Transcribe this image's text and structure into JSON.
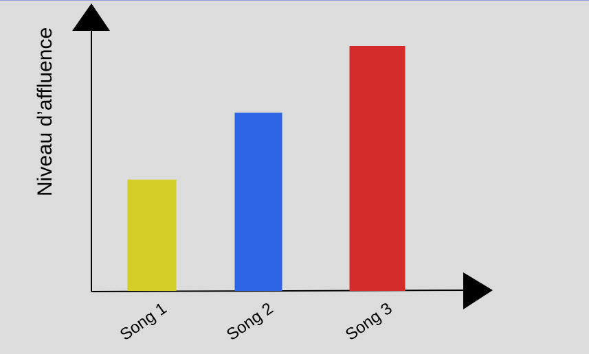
{
  "chart_data": {
    "type": "bar",
    "title": "",
    "xlabel": "",
    "ylabel": "Niveau d’affluence",
    "categories": [
      "Song 1",
      "Song 2",
      "Song 3"
    ],
    "values": [
      1,
      1.6,
      2.2
    ],
    "colors": [
      "#d4ce29",
      "#2e64e6",
      "#d42b2b"
    ],
    "ylim": [
      0,
      2.2
    ],
    "grid": false,
    "legend": "none",
    "y_ticks_shown": false
  },
  "style": {
    "background": "#dcdcdc",
    "axis_color": "#000000"
  }
}
